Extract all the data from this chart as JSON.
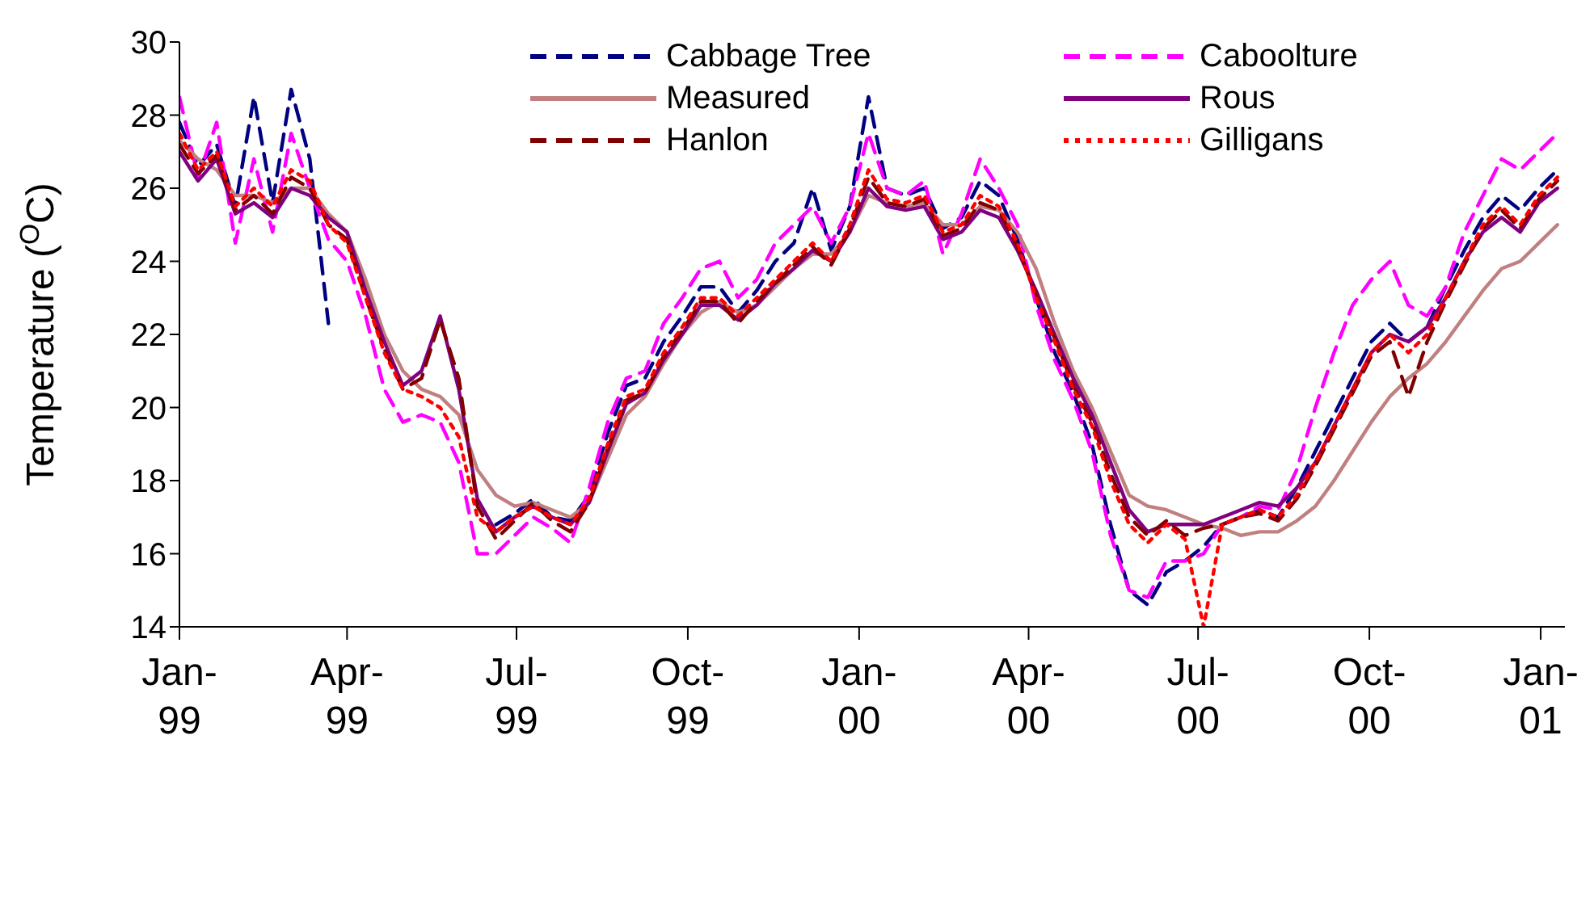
{
  "chart_data": {
    "type": "line",
    "ylabel": "Temperature ($^{O}$C)",
    "x": [
      "1999-01-01",
      "1999-01-11",
      "1999-01-21",
      "1999-01-31",
      "1999-02-10",
      "1999-02-20",
      "1999-03-02",
      "1999-03-12",
      "1999-03-22",
      "1999-04-01",
      "1999-04-11",
      "1999-04-21",
      "1999-05-01",
      "1999-05-11",
      "1999-05-21",
      "1999-05-31",
      "1999-06-10",
      "1999-06-20",
      "1999-06-30",
      "1999-07-10",
      "1999-07-20",
      "1999-07-30",
      "1999-08-09",
      "1999-08-19",
      "1999-08-29",
      "1999-09-08",
      "1999-09-18",
      "1999-09-28",
      "1999-10-08",
      "1999-10-18",
      "1999-10-28",
      "1999-11-07",
      "1999-11-17",
      "1999-11-27",
      "1999-12-07",
      "1999-12-17",
      "1999-12-27",
      "2000-01-06",
      "2000-01-16",
      "2000-01-26",
      "2000-02-05",
      "2000-02-15",
      "2000-02-25",
      "2000-03-06",
      "2000-03-16",
      "2000-03-26",
      "2000-04-05",
      "2000-04-15",
      "2000-04-25",
      "2000-05-05",
      "2000-05-15",
      "2000-05-25",
      "2000-06-04",
      "2000-06-14",
      "2000-06-24",
      "2000-07-04",
      "2000-07-14",
      "2000-07-24",
      "2000-08-03",
      "2000-08-13",
      "2000-08-23",
      "2000-09-02",
      "2000-09-12",
      "2000-09-22",
      "2000-10-02",
      "2000-10-12",
      "2000-10-22",
      "2000-11-01",
      "2000-11-11",
      "2000-11-21",
      "2000-12-01",
      "2000-12-11",
      "2000-12-21",
      "2000-12-31",
      "2001-01-10"
    ],
    "series": [
      {
        "name": "Cabbage Tree",
        "color": "#000080",
        "line_style": "dashed",
        "values": [
          27.8,
          26.6,
          27.2,
          25.5,
          28.5,
          25.6,
          28.7,
          26.8,
          22.3,
          null,
          null,
          null,
          null,
          null,
          null,
          null,
          null,
          16.8,
          17.1,
          17.5,
          17.0,
          16.9,
          17.6,
          19.3,
          20.6,
          20.8,
          21.8,
          22.5,
          23.3,
          23.3,
          22.6,
          23.2,
          24.0,
          24.5,
          26.0,
          24.3,
          25.5,
          28.5,
          26.0,
          25.8,
          26.0,
          24.9,
          25.2,
          26.2,
          25.8,
          24.6,
          23.0,
          21.5,
          20.4,
          19.0,
          16.8,
          15.0,
          14.6,
          15.5,
          15.8,
          16.2,
          16.8,
          17.0,
          17.2,
          17.0,
          17.8,
          18.8,
          19.8,
          20.8,
          21.8,
          22.3,
          21.8,
          22.2,
          23.3,
          24.3,
          25.2,
          25.8,
          25.4,
          26.0,
          26.5
        ]
      },
      {
        "name": "Caboolture",
        "color": "#ff00ff",
        "line_style": "dashed",
        "values": [
          28.5,
          26.3,
          27.8,
          24.5,
          26.8,
          24.8,
          27.5,
          26.0,
          24.6,
          24.0,
          22.5,
          20.5,
          19.6,
          19.8,
          19.6,
          18.5,
          16.0,
          16.0,
          16.5,
          17.0,
          16.7,
          16.3,
          17.8,
          19.6,
          20.8,
          21.0,
          22.3,
          23.0,
          23.8,
          24.0,
          23.0,
          23.5,
          24.5,
          25.0,
          25.5,
          24.5,
          25.5,
          27.5,
          26.0,
          25.8,
          26.2,
          24.2,
          25.3,
          26.8,
          26.0,
          25.0,
          22.8,
          21.3,
          20.2,
          18.8,
          16.5,
          15.0,
          14.8,
          15.8,
          15.8,
          16.0,
          16.8,
          17.0,
          17.3,
          17.2,
          18.3,
          20.0,
          21.5,
          22.8,
          23.5,
          24.0,
          22.8,
          22.5,
          23.3,
          24.8,
          25.8,
          26.8,
          26.5,
          27.0,
          27.5
        ]
      },
      {
        "name": "Measured",
        "color": "#c08080",
        "line_style": "solid",
        "values": [
          27.3,
          26.8,
          26.5,
          25.8,
          25.8,
          25.6,
          26.0,
          26.0,
          25.3,
          24.8,
          23.5,
          22.0,
          21.0,
          20.5,
          20.3,
          19.8,
          18.3,
          17.6,
          17.3,
          17.4,
          17.2,
          17.0,
          17.4,
          18.6,
          19.8,
          20.3,
          21.2,
          22.0,
          22.6,
          22.9,
          22.6,
          22.8,
          23.3,
          23.8,
          24.2,
          24.2,
          24.8,
          25.8,
          25.6,
          25.5,
          25.6,
          25.0,
          25.0,
          25.5,
          25.4,
          24.8,
          23.8,
          22.3,
          21.0,
          20.0,
          18.8,
          17.6,
          17.3,
          17.2,
          17.0,
          16.8,
          16.7,
          16.5,
          16.6,
          16.6,
          16.9,
          17.3,
          18.0,
          18.8,
          19.6,
          20.3,
          20.8,
          21.2,
          21.8,
          22.5,
          23.2,
          23.8,
          24.0,
          24.5,
          25.0
        ]
      },
      {
        "name": "Rous",
        "color": "#800080",
        "line_style": "solid",
        "values": [
          27.0,
          26.2,
          26.8,
          25.3,
          25.6,
          25.2,
          26.0,
          25.8,
          25.2,
          24.8,
          23.2,
          21.8,
          20.6,
          21.0,
          22.5,
          20.5,
          17.5,
          16.6,
          17.0,
          17.3,
          17.0,
          16.8,
          17.4,
          18.8,
          20.1,
          20.4,
          21.3,
          22.0,
          22.8,
          22.8,
          22.4,
          22.8,
          23.4,
          23.8,
          24.3,
          24.0,
          24.8,
          26.0,
          25.5,
          25.4,
          25.5,
          24.6,
          24.8,
          25.4,
          25.2,
          24.3,
          23.2,
          22.0,
          20.8,
          19.8,
          18.5,
          17.2,
          16.6,
          16.8,
          16.8,
          16.8,
          17.0,
          17.2,
          17.4,
          17.3,
          17.8,
          18.5,
          19.5,
          20.5,
          21.5,
          22.0,
          21.8,
          22.2,
          23.0,
          24.0,
          24.8,
          25.2,
          24.8,
          25.6,
          26.0
        ]
      },
      {
        "name": "Hanlon",
        "color": "#800000",
        "line_style": "dashed",
        "values": [
          27.2,
          26.4,
          26.9,
          25.4,
          25.8,
          25.3,
          26.3,
          26.0,
          25.0,
          24.6,
          23.0,
          21.6,
          20.5,
          20.8,
          22.4,
          20.8,
          17.3,
          16.4,
          16.9,
          17.4,
          16.9,
          16.6,
          17.4,
          18.9,
          20.2,
          20.4,
          21.4,
          22.1,
          22.9,
          22.9,
          22.3,
          22.9,
          23.4,
          23.9,
          24.4,
          23.9,
          24.9,
          26.3,
          25.6,
          25.5,
          25.7,
          24.7,
          24.9,
          25.6,
          25.4,
          24.4,
          23.1,
          21.9,
          20.6,
          19.6,
          18.2,
          17.0,
          16.5,
          16.9,
          16.5,
          16.7,
          16.8,
          17.0,
          17.1,
          16.9,
          17.5,
          18.4,
          19.4,
          20.4,
          21.4,
          21.8,
          20.3,
          21.8,
          22.9,
          23.9,
          24.9,
          25.4,
          24.9,
          25.7,
          26.2
        ]
      },
      {
        "name": "Gilligans",
        "color": "#ff0000",
        "line_style": "dotted",
        "values": [
          27.5,
          26.5,
          27.0,
          25.5,
          26.0,
          25.5,
          26.5,
          26.2,
          25.0,
          24.5,
          23.0,
          21.5,
          20.5,
          20.3,
          20.0,
          19.2,
          17.0,
          16.6,
          17.0,
          17.3,
          17.0,
          16.8,
          17.5,
          19.0,
          20.3,
          20.5,
          21.5,
          22.2,
          23.0,
          23.0,
          22.5,
          23.0,
          23.5,
          24.0,
          24.5,
          24.0,
          25.0,
          26.5,
          25.7,
          25.6,
          25.8,
          24.8,
          25.0,
          25.8,
          25.5,
          24.5,
          23.0,
          21.8,
          20.5,
          19.5,
          18.0,
          16.8,
          16.3,
          16.8,
          16.4,
          14.0,
          16.8,
          17.0,
          17.2,
          17.0,
          17.6,
          18.5,
          19.5,
          20.5,
          21.5,
          22.0,
          21.5,
          22.0,
          23.0,
          24.0,
          25.0,
          25.5,
          25.0,
          25.8,
          26.3
        ]
      }
    ],
    "xlim": [
      "1999-01-01",
      "2001-01-14"
    ],
    "xticks": [
      {
        "value": "1999-01-01",
        "label": "Jan-99"
      },
      {
        "value": "1999-04-01",
        "label": "Apr-99"
      },
      {
        "value": "1999-07-01",
        "label": "Jul-99"
      },
      {
        "value": "1999-10-01",
        "label": "Oct-99"
      },
      {
        "value": "2000-01-01",
        "label": "Jan-00"
      },
      {
        "value": "2000-04-01",
        "label": "Apr-00"
      },
      {
        "value": "2000-07-01",
        "label": "Jul-00"
      },
      {
        "value": "2000-10-01",
        "label": "Oct-00"
      },
      {
        "value": "2001-01-01",
        "label": "Jan-01"
      }
    ],
    "ylim": [
      14,
      30
    ],
    "yticks": [
      14,
      16,
      18,
      20,
      22,
      24,
      26,
      28,
      30
    ],
    "grid": false,
    "legend": "top right",
    "marker": "none"
  }
}
